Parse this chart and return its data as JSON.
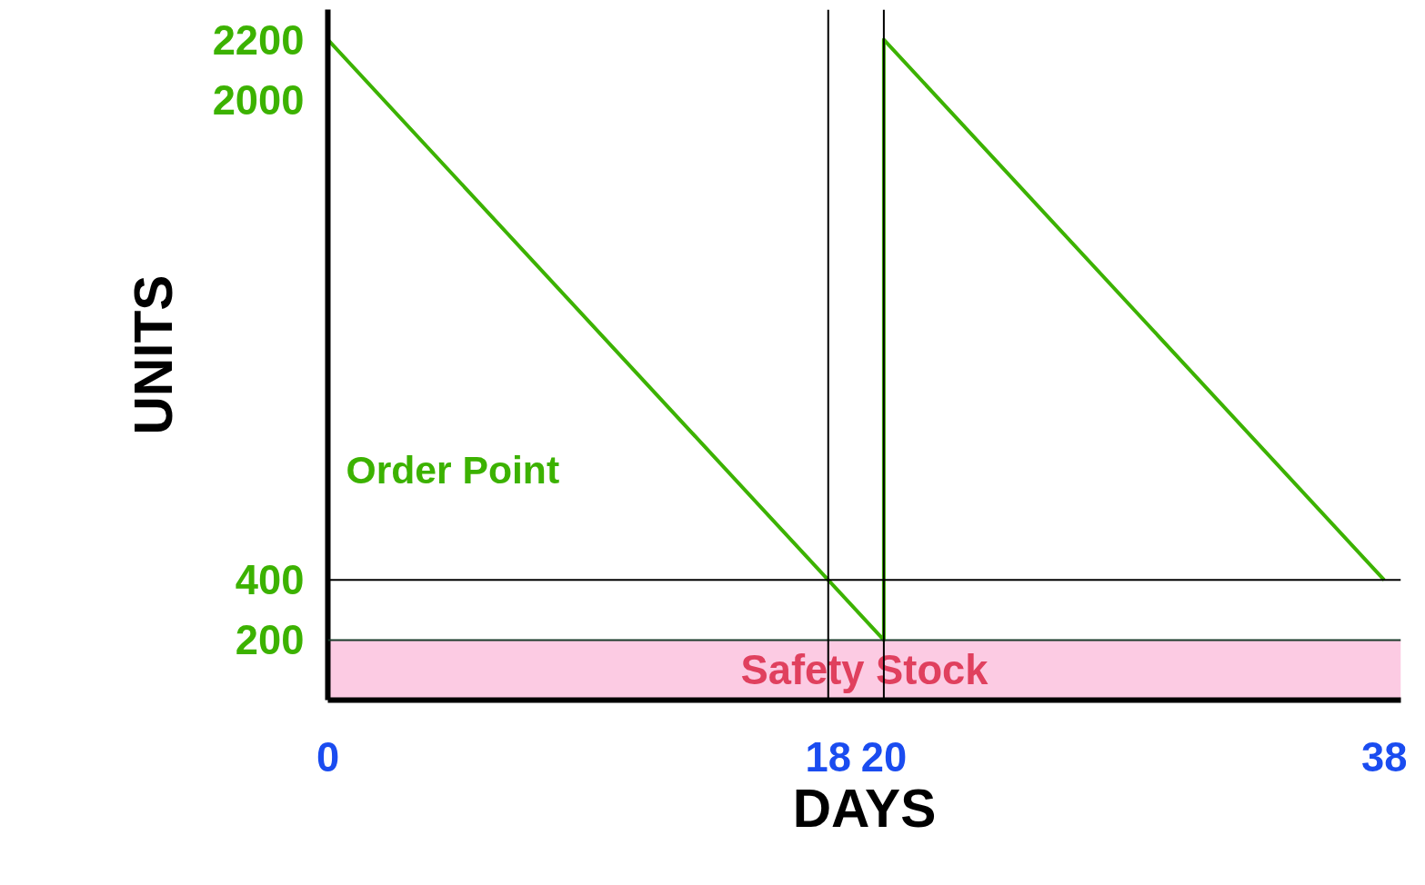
{
  "chart_data": {
    "type": "line",
    "xlabel": "DAYS",
    "ylabel": "UNITS",
    "x": [
      0,
      20,
      20,
      38
    ],
    "series": [
      {
        "color": "#3cb200",
        "values": [
          2200,
          200,
          2200,
          400
        ]
      }
    ],
    "xlim": [
      0,
      38.6
    ],
    "xticks": [
      0,
      18,
      20,
      38
    ],
    "ylim": [
      0,
      2300
    ],
    "yticks": [
      200,
      400,
      2000,
      2200
    ],
    "ref_lines": [
      {
        "axis": "y",
        "value": 400,
        "label": null,
        "color": "#000000"
      },
      {
        "axis": "y",
        "value": 200,
        "label": null,
        "color": "#1a3a2a"
      },
      {
        "axis": "x",
        "value": 18,
        "label": null,
        "color": "#000000"
      },
      {
        "axis": "x",
        "value": 20,
        "label": null,
        "color": "#000000"
      }
    ],
    "bands": [
      {
        "axis": "y",
        "from": 0,
        "to": 200,
        "label": "Safety Stock",
        "color": "#fccbe3"
      }
    ],
    "annotations": [
      "Order Point"
    ]
  }
}
